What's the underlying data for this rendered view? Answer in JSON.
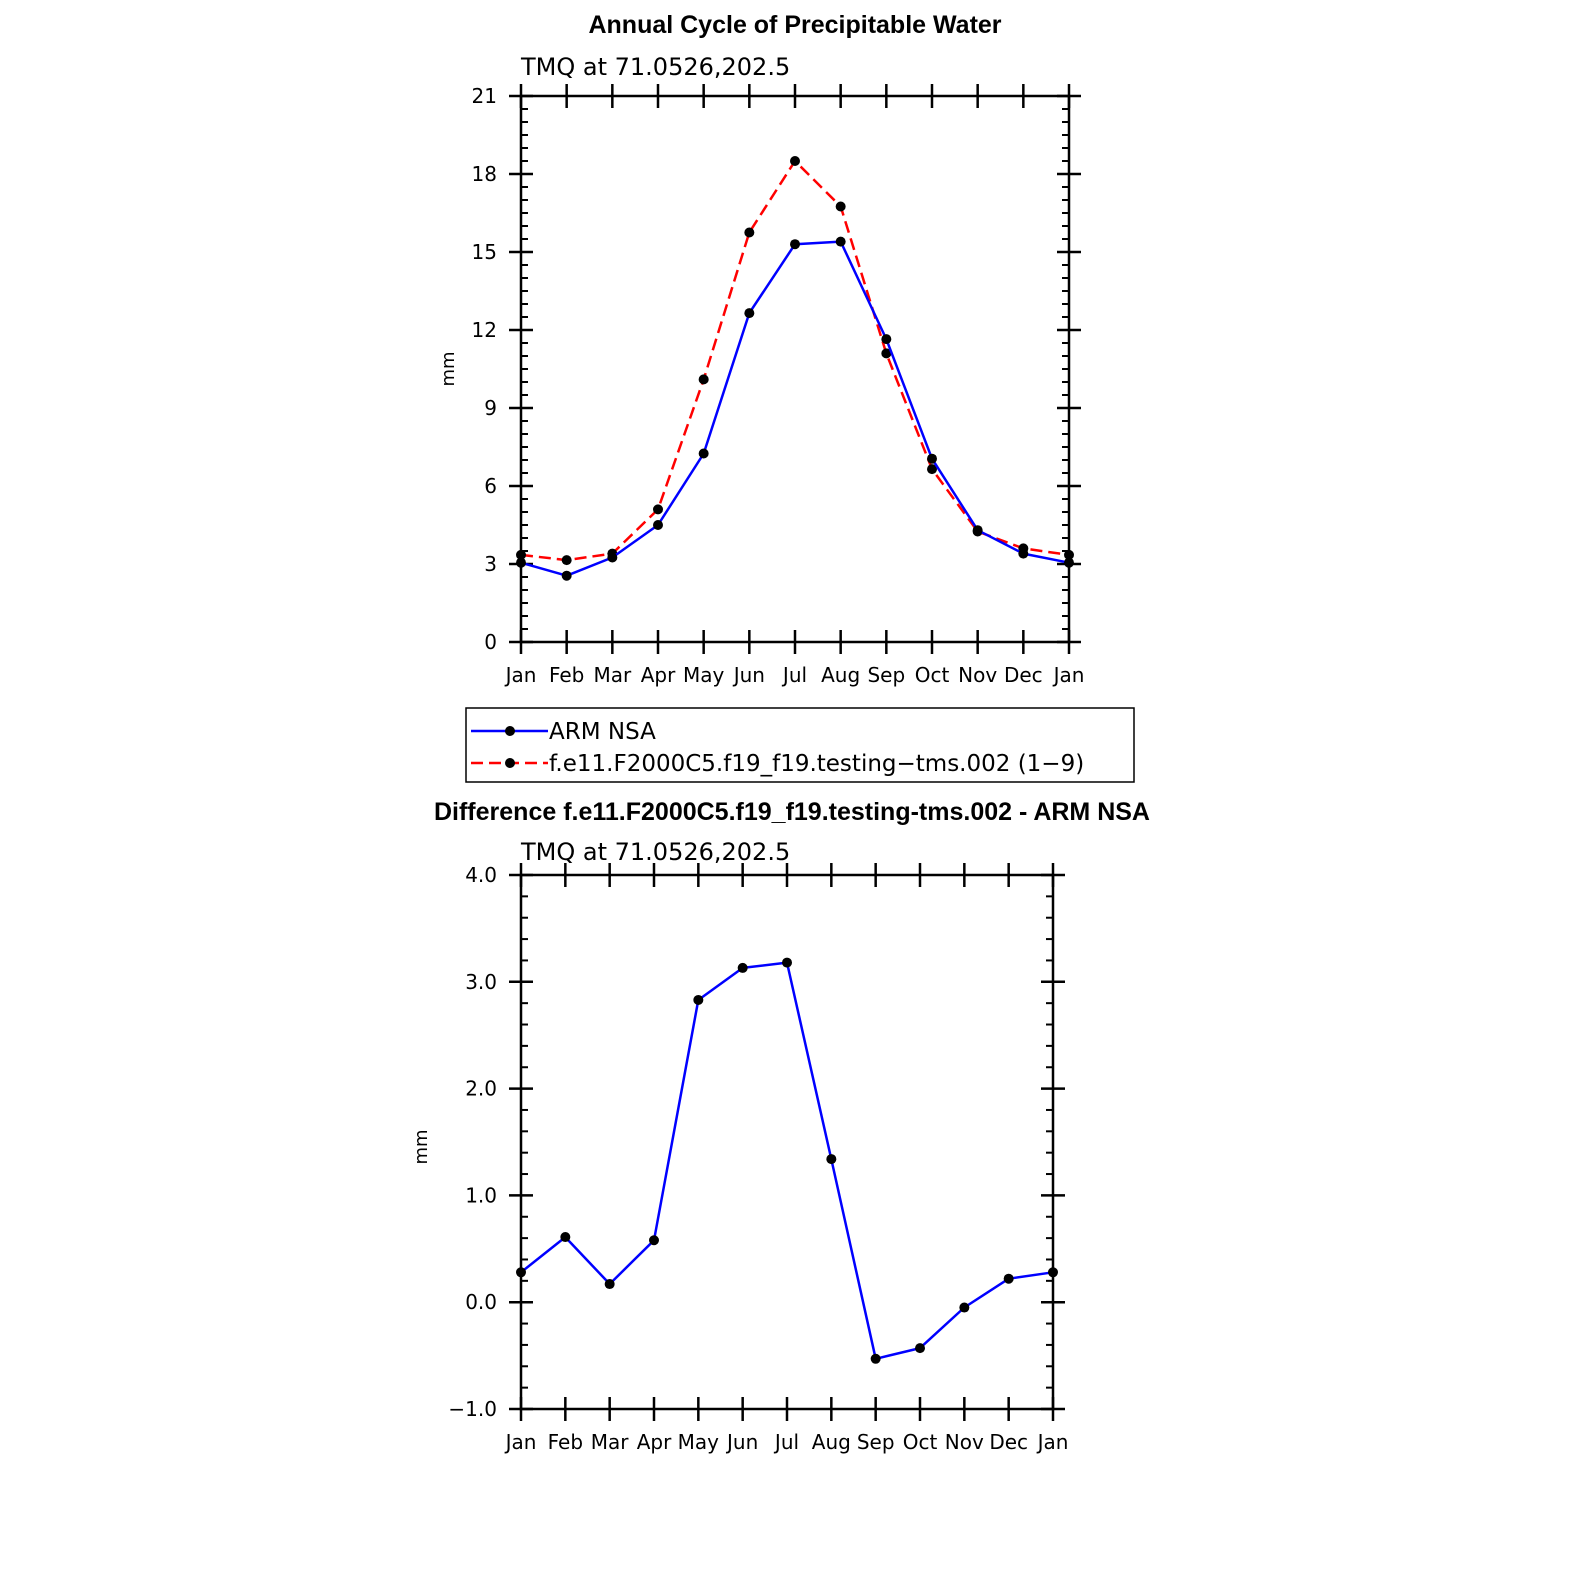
{
  "chart_data": [
    {
      "type": "line",
      "title": "Annual Cycle of Precipitable Water",
      "subtitle": "TMQ at 71.0526,202.5",
      "xlabel": "",
      "ylabel": "mm",
      "categories": [
        "Jan",
        "Feb",
        "Mar",
        "Apr",
        "May",
        "Jun",
        "Jul",
        "Aug",
        "Sep",
        "Oct",
        "Nov",
        "Dec",
        "Jan"
      ],
      "ylim": [
        0,
        21
      ],
      "yticks": [
        {
          "value": 0,
          "label": "0"
        },
        {
          "value": 3,
          "label": "3"
        },
        {
          "value": 6,
          "label": "6"
        },
        {
          "value": 9,
          "label": "9"
        },
        {
          "value": 12,
          "label": "12"
        },
        {
          "value": 15,
          "label": "15"
        },
        {
          "value": 18,
          "label": "18"
        },
        {
          "value": 21,
          "label": "21"
        }
      ],
      "grid": false,
      "legend_position": "bottom",
      "series": [
        {
          "name": "ARM NSA",
          "color": "#0000ff",
          "dash": "solid",
          "values": [
            3.05,
            2.55,
            3.25,
            4.5,
            7.25,
            12.65,
            15.3,
            15.4,
            11.65,
            7.05,
            4.3,
            3.4,
            3.05
          ]
        },
        {
          "name": "f.e11.F2000C5.f19_f19.testing−tms.002 (1−9)",
          "color": "#ff0000",
          "dash": "dashed",
          "values": [
            3.35,
            3.15,
            3.4,
            5.1,
            10.1,
            15.75,
            18.5,
            16.75,
            11.1,
            6.65,
            4.25,
            3.6,
            3.35
          ]
        }
      ]
    },
    {
      "type": "line",
      "title": "Difference f.e11.F2000C5.f19_f19.testing-tms.002 - ARM NSA",
      "subtitle": "TMQ at 71.0526,202.5",
      "xlabel": "",
      "ylabel": "mm",
      "categories": [
        "Jan",
        "Feb",
        "Mar",
        "Apr",
        "May",
        "Jun",
        "Jul",
        "Aug",
        "Sep",
        "Oct",
        "Nov",
        "Dec",
        "Jan"
      ],
      "ylim": [
        -1.0,
        4.0
      ],
      "yticks": [
        {
          "value": -1.0,
          "label": "−1.0"
        },
        {
          "value": 0.0,
          "label": "0.0"
        },
        {
          "value": 1.0,
          "label": "1.0"
        },
        {
          "value": 2.0,
          "label": "2.0"
        },
        {
          "value": 3.0,
          "label": "3.0"
        },
        {
          "value": 4.0,
          "label": "4.0"
        }
      ],
      "grid": false,
      "series": [
        {
          "name": "Difference",
          "color": "#0000ff",
          "dash": "solid",
          "values": [
            0.28,
            0.61,
            0.17,
            0.58,
            2.83,
            3.13,
            3.18,
            1.34,
            -0.53,
            -0.43,
            -0.05,
            0.22,
            0.28
          ]
        }
      ]
    }
  ]
}
